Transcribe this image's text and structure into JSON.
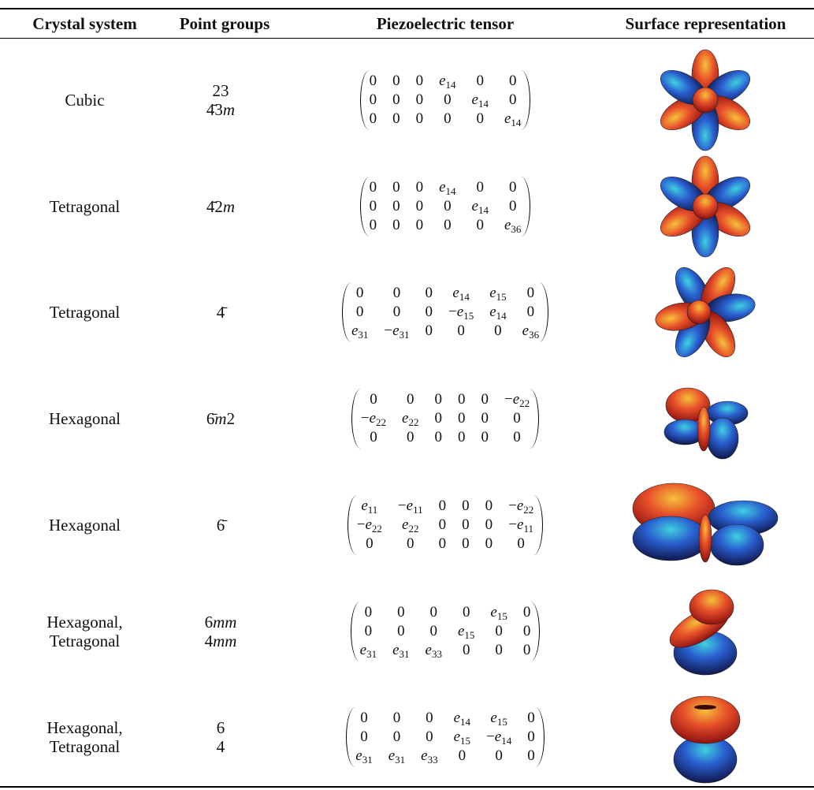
{
  "table": {
    "headers": [
      "Crystal system",
      "Point groups",
      "Piezoelectric tensor",
      "Surface representation"
    ],
    "rows": [
      {
        "crystal_system": [
          "Cubic"
        ],
        "point_groups": [
          "23",
          "4̄3m"
        ],
        "tensor": [
          [
            "0",
            "0",
            "0",
            "e14",
            "0",
            "0"
          ],
          [
            "0",
            "0",
            "0",
            "0",
            "e14",
            "0"
          ],
          [
            "0",
            "0",
            "0",
            "0",
            "0",
            "e14"
          ]
        ]
      },
      {
        "crystal_system": [
          "Tetragonal"
        ],
        "point_groups": [
          "4̄2m"
        ],
        "tensor": [
          [
            "0",
            "0",
            "0",
            "e14",
            "0",
            "0"
          ],
          [
            "0",
            "0",
            "0",
            "0",
            "e14",
            "0"
          ],
          [
            "0",
            "0",
            "0",
            "0",
            "0",
            "e36"
          ]
        ]
      },
      {
        "crystal_system": [
          "Tetragonal"
        ],
        "point_groups": [
          "4̄"
        ],
        "tensor": [
          [
            "0",
            "0",
            "0",
            "e14",
            "e15",
            "0"
          ],
          [
            "0",
            "0",
            "0",
            "−e15",
            "e14",
            "0"
          ],
          [
            "e31",
            "−e31",
            "0",
            "0",
            "0",
            "e36"
          ]
        ]
      },
      {
        "crystal_system": [
          "Hexagonal"
        ],
        "point_groups": [
          "6̄m2"
        ],
        "tensor": [
          [
            "0",
            "0",
            "0",
            "0",
            "0",
            "−e22"
          ],
          [
            "−e22",
            "e22",
            "0",
            "0",
            "0",
            "0"
          ],
          [
            "0",
            "0",
            "0",
            "0",
            "0",
            "0"
          ]
        ]
      },
      {
        "crystal_system": [
          "Hexagonal"
        ],
        "point_groups": [
          "6̄"
        ],
        "tensor": [
          [
            "e11",
            "−e11",
            "0",
            "0",
            "0",
            "−e22"
          ],
          [
            "−e22",
            "e22",
            "0",
            "0",
            "0",
            "−e11"
          ],
          [
            "0",
            "0",
            "0",
            "0",
            "0",
            "0"
          ]
        ]
      },
      {
        "crystal_system": [
          "Hexagonal,",
          "Tetragonal"
        ],
        "point_groups": [
          "6mm",
          "4mm"
        ],
        "tensor": [
          [
            "0",
            "0",
            "0",
            "0",
            "e15",
            "0"
          ],
          [
            "0",
            "0",
            "0",
            "e15",
            "0",
            "0"
          ],
          [
            "e31",
            "e31",
            "e33",
            "0",
            "0",
            "0"
          ]
        ]
      },
      {
        "crystal_system": [
          "Hexagonal,",
          "Tetragonal"
        ],
        "point_groups": [
          "6",
          "4"
        ],
        "tensor": [
          [
            "0",
            "0",
            "0",
            "e14",
            "e15",
            "0"
          ],
          [
            "0",
            "0",
            "0",
            "e15",
            "−e14",
            "0"
          ],
          [
            "e31",
            "e31",
            "e33",
            "0",
            "0",
            "0"
          ]
        ]
      }
    ]
  }
}
